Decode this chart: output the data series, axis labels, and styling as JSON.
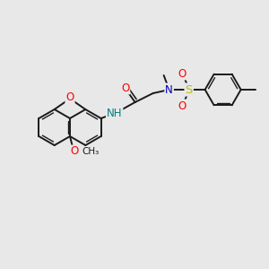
{
  "background_color": "#e8e8e8",
  "bond_color": "#1a1a1a",
  "bond_width": 1.4,
  "atom_colors": {
    "O": "#ff0000",
    "N": "#0000bb",
    "S": "#bbbb00",
    "NH": "#008080"
  },
  "r_hex": 20,
  "figsize": [
    3.0,
    3.0
  ],
  "dpi": 100
}
